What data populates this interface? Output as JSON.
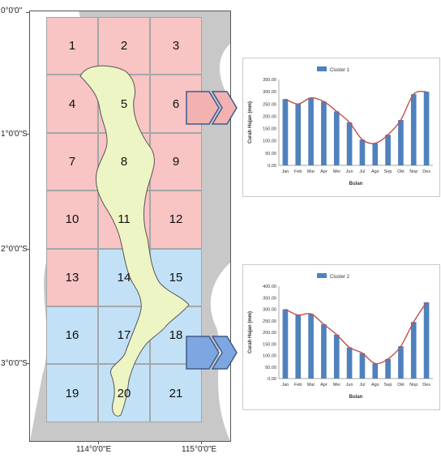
{
  "map": {
    "lat_labels": [
      "0°0'0\"",
      "1°0'0\"S",
      "2°0'0\"S",
      "3°0'0\"S"
    ],
    "lon_labels": [
      "114°0'0\"E",
      "115°0'0\"E"
    ],
    "cells": [
      {
        "num": "1",
        "cluster": 1
      },
      {
        "num": "2",
        "cluster": 1
      },
      {
        "num": "3",
        "cluster": 1
      },
      {
        "num": "4",
        "cluster": 1
      },
      {
        "num": "5",
        "cluster": 1
      },
      {
        "num": "6",
        "cluster": 1
      },
      {
        "num": "7",
        "cluster": 1
      },
      {
        "num": "8",
        "cluster": 1
      },
      {
        "num": "9",
        "cluster": 1
      },
      {
        "num": "10",
        "cluster": 1
      },
      {
        "num": "11",
        "cluster": 1
      },
      {
        "num": "12",
        "cluster": 1
      },
      {
        "num": "13",
        "cluster": 1
      },
      {
        "num": "14",
        "cluster": 2
      },
      {
        "num": "15",
        "cluster": 2
      },
      {
        "num": "16",
        "cluster": 2
      },
      {
        "num": "17",
        "cluster": 2
      },
      {
        "num": "18",
        "cluster": 2
      },
      {
        "num": "19",
        "cluster": 2
      },
      {
        "num": "20",
        "cluster": 2
      },
      {
        "num": "21",
        "cluster": 2
      }
    ],
    "colors": {
      "cluster1": "#f8c4c4",
      "cluster2": "#c2e1f7",
      "land": "#eef5c4",
      "sea": "#c8c8c8",
      "arrow1": "#f3b2b2",
      "arrow2": "#7ea6e0"
    }
  },
  "chart_data": [
    {
      "type": "bar",
      "legend": "Cluster 1",
      "categories": [
        "Jan",
        "Feb",
        "Mar",
        "Apr",
        "Mei",
        "Jun",
        "Jul",
        "Ags",
        "Sep",
        "Okt",
        "Nop",
        "Des"
      ],
      "series": [
        {
          "name": "Cluster 1",
          "values": [
            270,
            250,
            275,
            260,
            220,
            175,
            105,
            90,
            125,
            185,
            290,
            300
          ]
        }
      ],
      "xlabel": "Bulan",
      "ylabel": "Curah Hujan (mm)",
      "ylim": [
        0,
        350
      ],
      "yticks": [
        "0.00",
        "50.00",
        "100.00",
        "150.00",
        "200.00",
        "250.00",
        "300.00",
        "350.00"
      ],
      "bar_color": "#4f81bd",
      "line_color": "#c0504d"
    },
    {
      "type": "bar",
      "legend": "Cluster 2",
      "categories": [
        "Jan",
        "Feb",
        "Mar",
        "Apr",
        "Mei",
        "Jun",
        "Jul",
        "Ags",
        "Sep",
        "Okt",
        "Nop",
        "Des"
      ],
      "series": [
        {
          "name": "Cluster 2",
          "values": [
            300,
            275,
            280,
            235,
            190,
            135,
            110,
            65,
            85,
            140,
            245,
            330
          ]
        }
      ],
      "xlabel": "Bulan",
      "ylabel": "Curah Hujan (mm)",
      "ylim": [
        0,
        400
      ],
      "yticks": [
        "0.00",
        "50.00",
        "100.00",
        "150.00",
        "200.00",
        "250.00",
        "300.00",
        "350.00",
        "400.00"
      ],
      "bar_color": "#4f81bd",
      "line_color": "#c0504d"
    }
  ]
}
